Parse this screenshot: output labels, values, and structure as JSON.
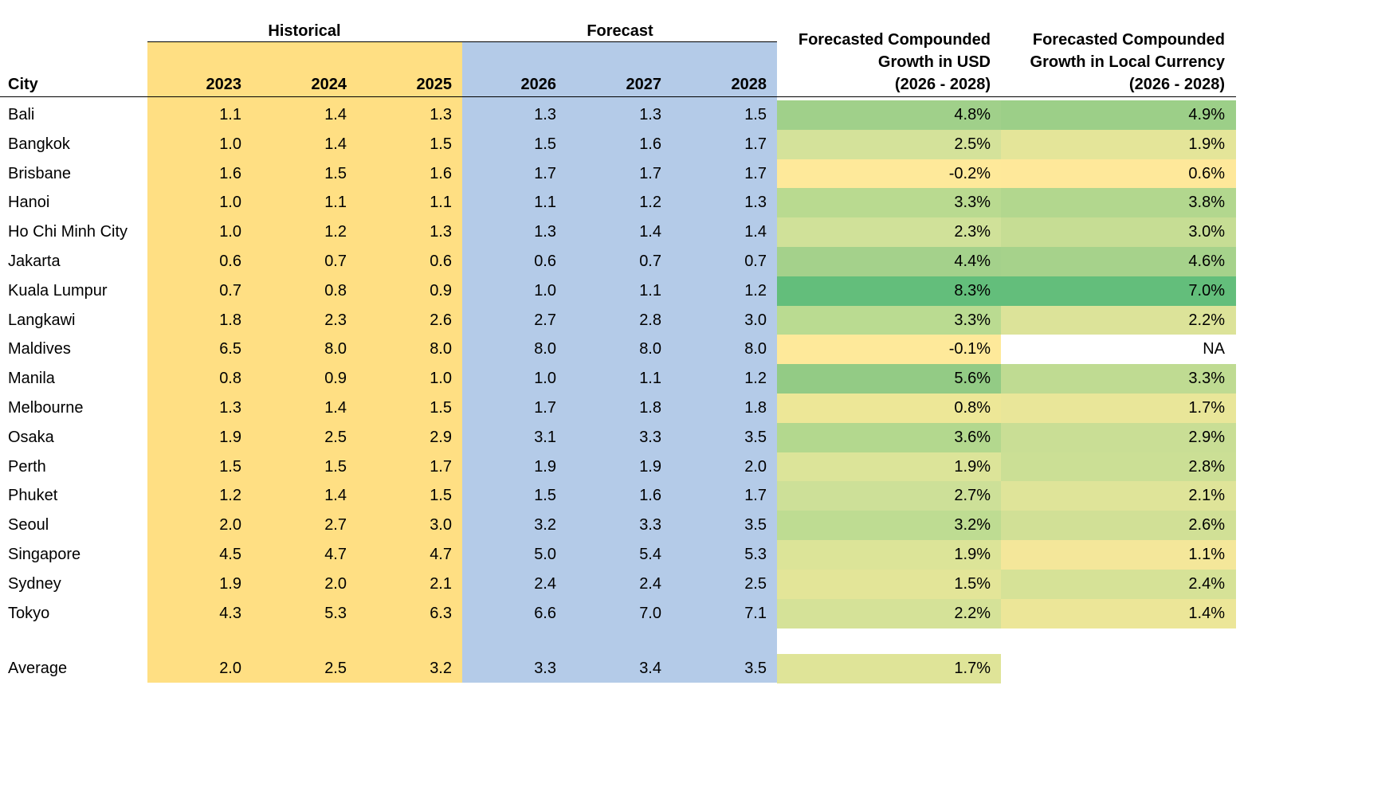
{
  "table": {
    "group_headers": [
      "Historical",
      "Forecast"
    ],
    "columns": [
      [
        "City"
      ],
      [
        "2023"
      ],
      [
        "2024"
      ],
      [
        "2025"
      ],
      [
        "2026"
      ],
      [
        "2027"
      ],
      [
        "2028"
      ],
      [
        "Forecasted Compounded",
        "Growth in USD",
        "(2026 - 2028)"
      ],
      [
        "Forecasted Compounded",
        "Growth in Local Currency",
        "(2026 - 2028)"
      ]
    ],
    "historical_color": "#ffdf83",
    "forecast_color": "#b4cbe8",
    "rows": [
      {
        "cells": [
          "Bali",
          "1.1",
          "1.4",
          "1.3",
          "1.3",
          "1.3",
          "1.5",
          "4.8%",
          "4.9%"
        ],
        "colors": [
          "#a0d08a",
          "#9ccf88"
        ]
      },
      {
        "cells": [
          "Bangkok",
          "1.0",
          "1.4",
          "1.5",
          "1.5",
          "1.6",
          "1.7",
          "2.5%",
          "1.9%"
        ],
        "colors": [
          "#d4e29a",
          "#e4e599"
        ]
      },
      {
        "cells": [
          "Brisbane",
          "1.6",
          "1.5",
          "1.6",
          "1.7",
          "1.7",
          "1.7",
          "-0.2%",
          "0.6%"
        ],
        "colors": [
          "#fee99a",
          "#fee89a"
        ]
      },
      {
        "cells": [
          "Hanoi",
          "1.0",
          "1.1",
          "1.1",
          "1.1",
          "1.2",
          "1.3",
          "3.3%",
          "3.8%"
        ],
        "colors": [
          "#b9da90",
          "#b2d78e"
        ]
      },
      {
        "cells": [
          "Ho Chi Minh City",
          "1.0",
          "1.2",
          "1.3",
          "1.3",
          "1.4",
          "1.4",
          "2.3%",
          "3.0%"
        ],
        "colors": [
          "#d0e199",
          "#c6dd94"
        ]
      },
      {
        "cells": [
          "Jakarta",
          "0.6",
          "0.7",
          "0.6",
          "0.6",
          "0.7",
          "0.7",
          "4.4%",
          "4.6%"
        ],
        "colors": [
          "#a4d18b",
          "#a6d28b"
        ]
      },
      {
        "cells": [
          "Kuala Lumpur",
          "0.7",
          "0.8",
          "0.9",
          "1.0",
          "1.1",
          "1.2",
          "8.3%",
          "7.0%"
        ],
        "colors": [
          "#63be7b",
          "#63be7b"
        ]
      },
      {
        "cells": [
          "Langkawi",
          "1.8",
          "2.3",
          "2.6",
          "2.7",
          "2.8",
          "3.0",
          "3.3%",
          "2.2%"
        ],
        "colors": [
          "#badb91",
          "#dce399"
        ]
      },
      {
        "cells": [
          "Maldives",
          "6.5",
          "8.0",
          "8.0",
          "8.0",
          "8.0",
          "8.0",
          "-0.1%",
          "NA"
        ],
        "colors": [
          "#fee99a",
          "#ffffff"
        ]
      },
      {
        "cells": [
          "Manila",
          "0.8",
          "0.9",
          "1.0",
          "1.0",
          "1.1",
          "1.2",
          "5.6%",
          "3.3%"
        ],
        "colors": [
          "#93cb85",
          "#bfdb92"
        ]
      },
      {
        "cells": [
          "Melbourne",
          "1.3",
          "1.4",
          "1.5",
          "1.7",
          "1.8",
          "1.8",
          "0.8%",
          "1.7%"
        ],
        "colors": [
          "#ede797",
          "#e9e699"
        ]
      },
      {
        "cells": [
          "Osaka",
          "1.9",
          "2.5",
          "2.9",
          "3.1",
          "3.3",
          "3.5",
          "3.6%",
          "2.9%"
        ],
        "colors": [
          "#b3d88e",
          "#c9de95"
        ]
      },
      {
        "cells": [
          "Perth",
          "1.5",
          "1.5",
          "1.7",
          "1.9",
          "1.9",
          "2.0",
          "1.9%",
          "2.8%"
        ],
        "colors": [
          "#dce499",
          "#cbdf95"
        ]
      },
      {
        "cells": [
          "Phuket",
          "1.2",
          "1.4",
          "1.5",
          "1.5",
          "1.6",
          "1.7",
          "2.7%",
          "2.1%"
        ],
        "colors": [
          "#cde098",
          "#dfe499"
        ]
      },
      {
        "cells": [
          "Seoul",
          "2.0",
          "2.7",
          "3.0",
          "3.2",
          "3.3",
          "3.5",
          "3.2%",
          "2.6%"
        ],
        "colors": [
          "#bedc92",
          "#d1e096"
        ]
      },
      {
        "cells": [
          "Singapore",
          "4.5",
          "4.7",
          "4.7",
          "5.0",
          "5.4",
          "5.3",
          "1.9%",
          "1.1%"
        ],
        "colors": [
          "#dce498",
          "#f4e79a"
        ]
      },
      {
        "cells": [
          "Sydney",
          "1.9",
          "2.0",
          "2.1",
          "2.4",
          "2.4",
          "2.5",
          "1.5%",
          "2.4%"
        ],
        "colors": [
          "#e3e598",
          "#d6e297"
        ]
      },
      {
        "cells": [
          "Tokyo",
          "4.3",
          "5.3",
          "6.3",
          "6.6",
          "7.0",
          "7.1",
          "2.2%",
          "1.4%"
        ],
        "colors": [
          "#d5e298",
          "#ece698"
        ]
      }
    ],
    "average": {
      "cells": [
        "Average",
        "2.0",
        "2.5",
        "3.2",
        "3.3",
        "3.4",
        "3.5",
        "1.7%"
      ],
      "colors": [
        "#dfe498"
      ]
    }
  }
}
